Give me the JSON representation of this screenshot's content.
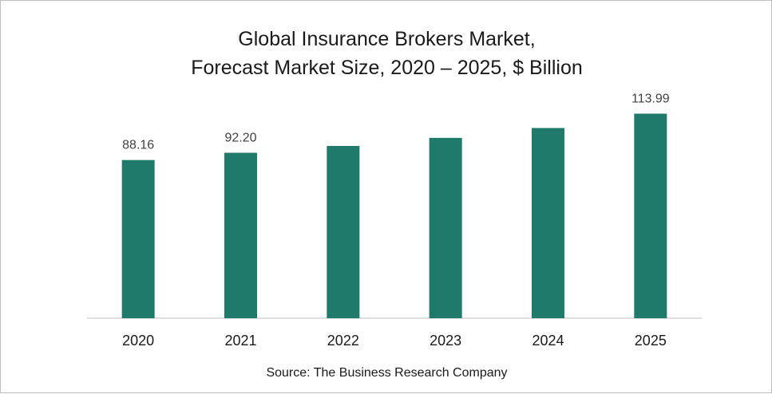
{
  "chart_data": {
    "type": "bar",
    "title": "Global Insurance  Brokers Market,",
    "subtitle": "Forecast Market Size, 2020 – 2025, $ Billion",
    "categories": [
      "2020",
      "2021",
      "2022",
      "2023",
      "2024",
      "2025"
    ],
    "series": [
      {
        "values": [
          88.16,
          92.2,
          96.0,
          100.5,
          106.0,
          113.99
        ]
      }
    ],
    "data_labels": [
      "88.16",
      "92.20",
      "",
      "",
      "",
      "113.99"
    ],
    "ylim": [
      0,
      120
    ],
    "grid": false,
    "bar_color": "#1f7a6b"
  },
  "source": "Source: The Business Research Company"
}
